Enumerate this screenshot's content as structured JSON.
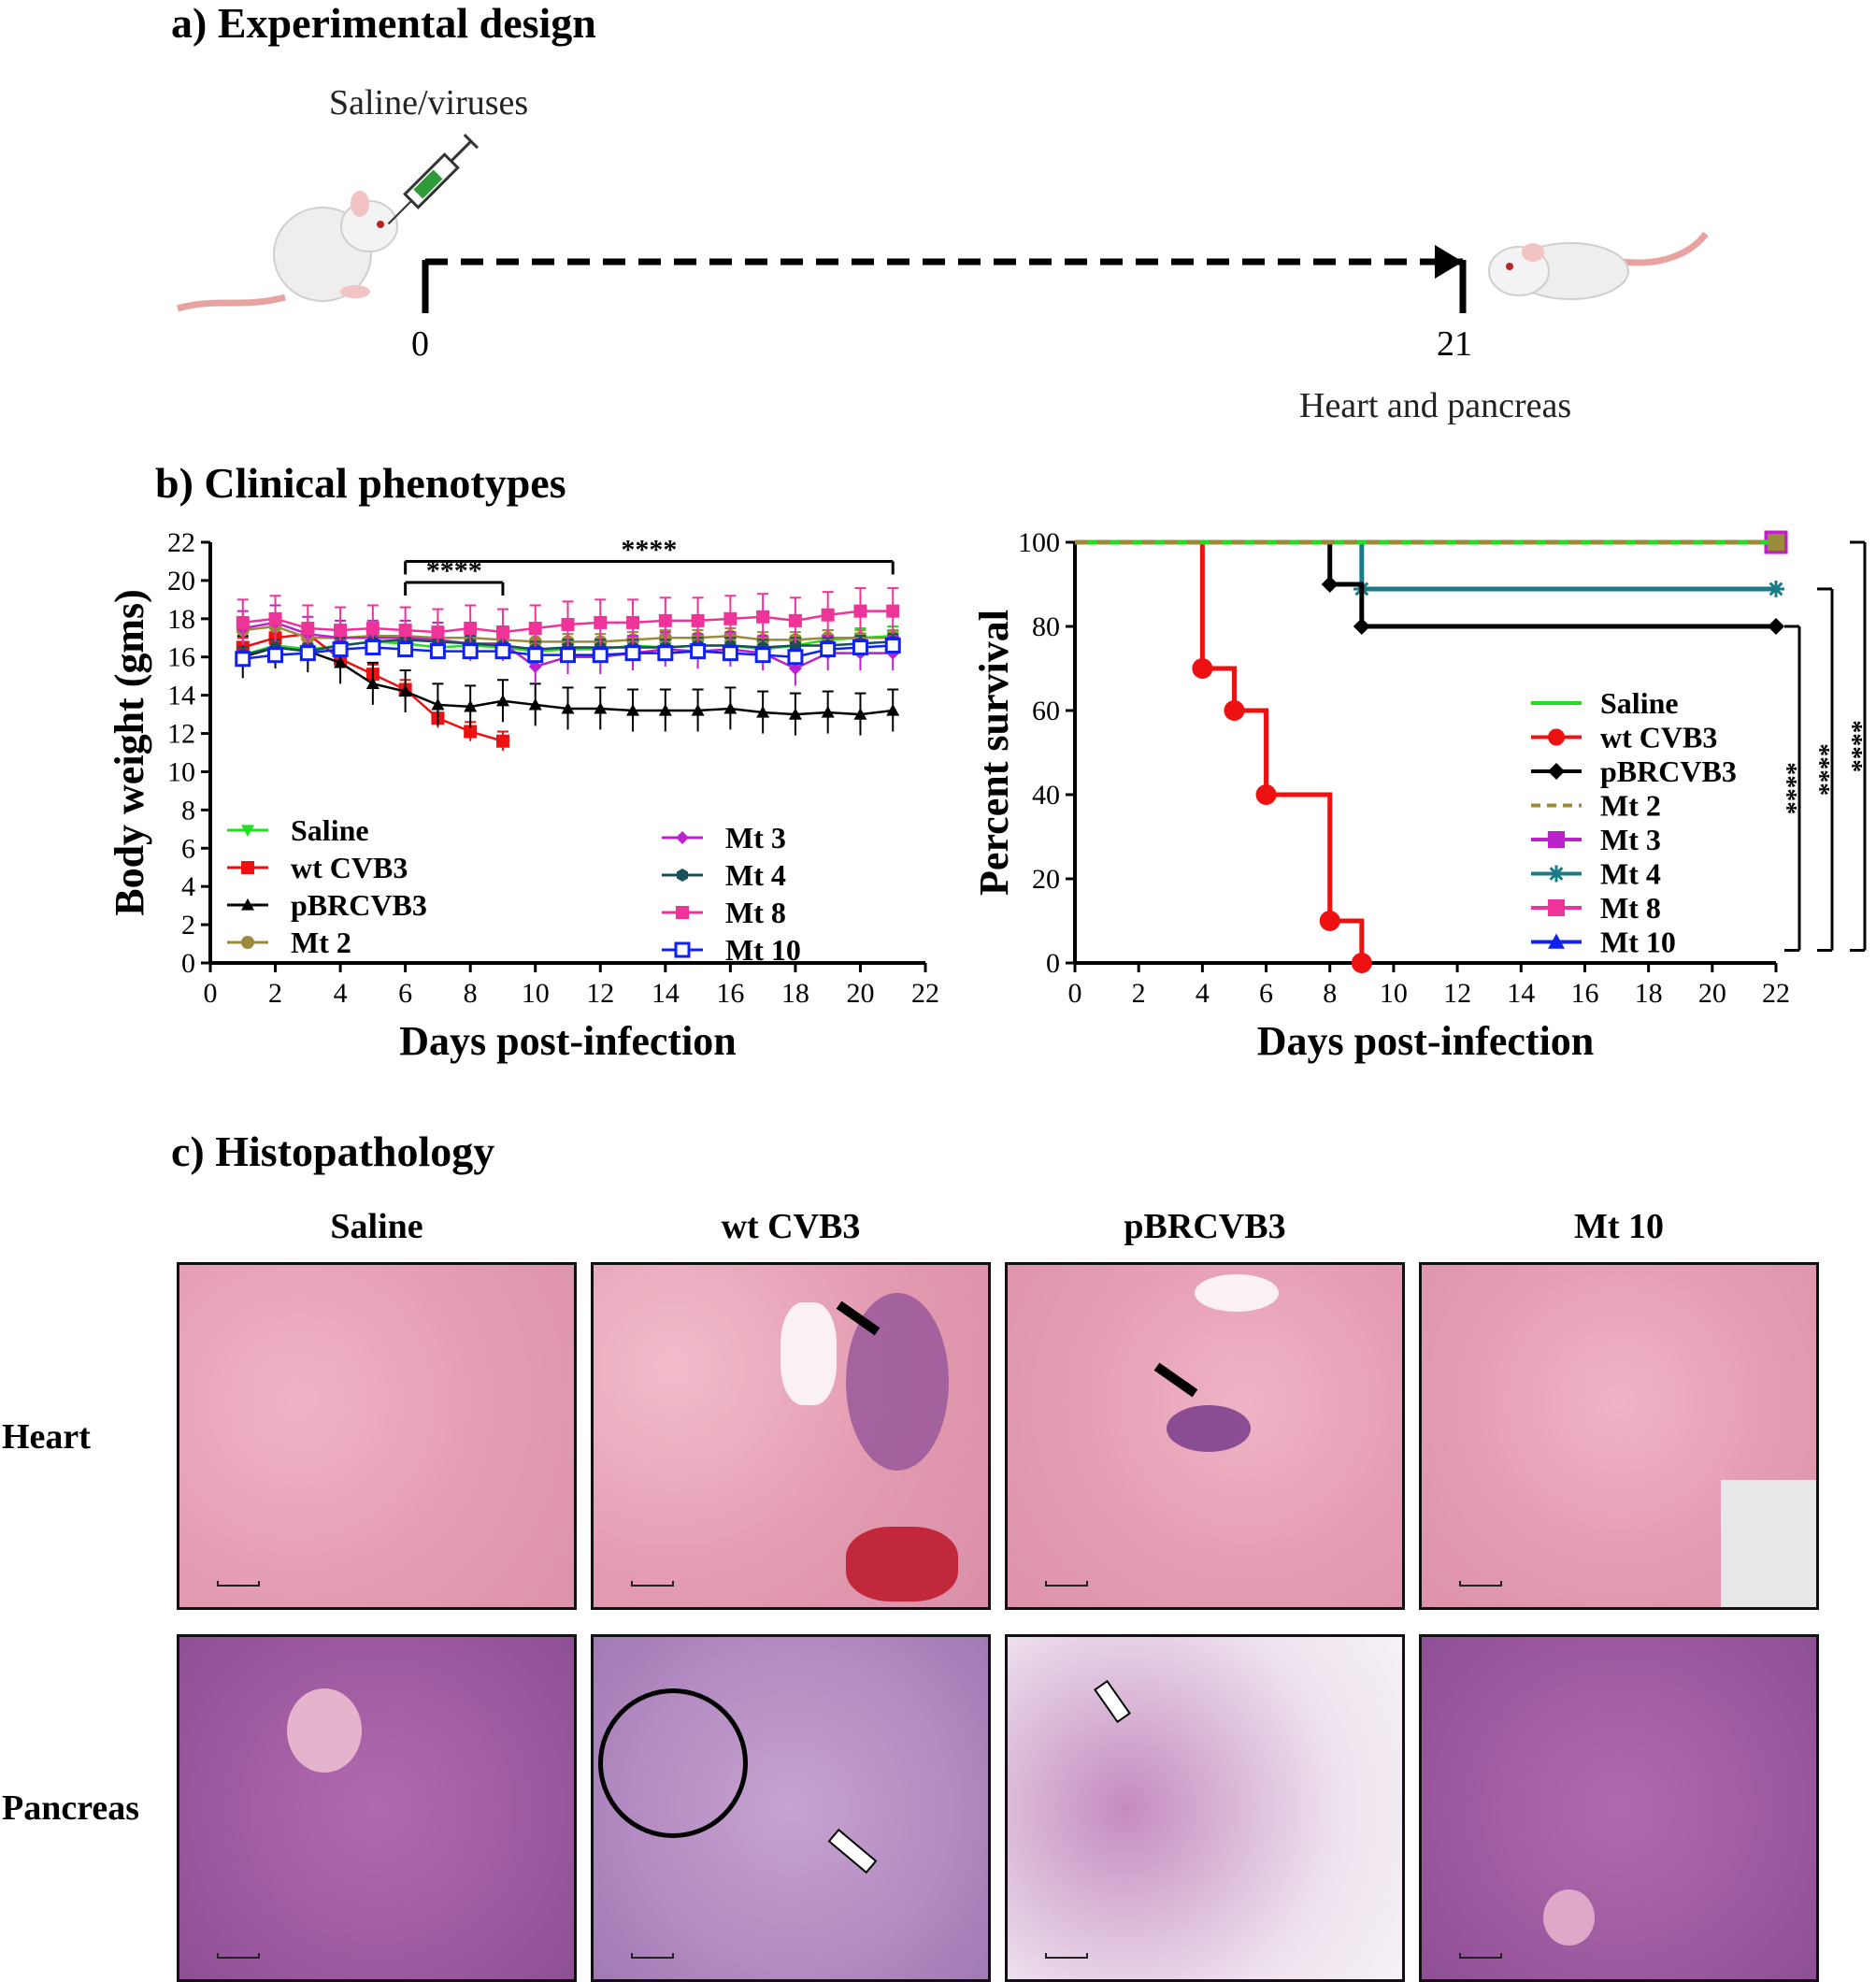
{
  "sections": {
    "a_title": "a) Experimental design",
    "b_title": "b) Clinical phenotypes",
    "c_title": "c) Histopathology"
  },
  "design": {
    "injection_label": "Saline/viruses",
    "start_day": "0",
    "end_day": "21",
    "end_label": "Heart and pancreas"
  },
  "chart_data": [
    {
      "type": "line",
      "xlabel": "Days post-infection",
      "ylabel": "Body weight (gms)",
      "xlim": [
        0,
        22
      ],
      "ylim": [
        0,
        22
      ],
      "xticks": [
        0,
        2,
        4,
        6,
        8,
        10,
        12,
        14,
        16,
        18,
        20,
        22
      ],
      "yticks": [
        0,
        2,
        4,
        6,
        8,
        10,
        12,
        14,
        16,
        18,
        20,
        22
      ],
      "significance": [
        {
          "from": 6,
          "to": 9,
          "label": "****"
        },
        {
          "from": 6,
          "to": 21,
          "label": "****"
        }
      ],
      "series": [
        {
          "name": "Saline",
          "color": "#22dd22",
          "marker": "triangle-down",
          "x": [
            1,
            2,
            3,
            4,
            5,
            6,
            7,
            8,
            9,
            10,
            11,
            12,
            13,
            14,
            15,
            16,
            17,
            18,
            19,
            20,
            21
          ],
          "y": [
            16.1,
            16.6,
            16.4,
            16.6,
            16.8,
            16.7,
            16.5,
            16.6,
            16.5,
            16.3,
            16.4,
            16.4,
            16.6,
            16.5,
            16.6,
            16.6,
            16.4,
            16.6,
            16.9,
            17.0,
            17.1
          ],
          "err": 0.5
        },
        {
          "name": "wt CVB3",
          "color": "#ee1111",
          "marker": "square",
          "x": [
            1,
            2,
            3,
            4,
            5,
            6,
            7,
            8,
            9
          ],
          "y": [
            16.5,
            17.0,
            17.2,
            15.9,
            15.1,
            14.3,
            12.8,
            12.1,
            11.6
          ],
          "err": 0.5
        },
        {
          "name": "pBRCVB3",
          "color": "#000000",
          "marker": "triangle-up",
          "x": [
            1,
            2,
            3,
            4,
            5,
            6,
            7,
            8,
            9,
            10,
            11,
            12,
            13,
            14,
            15,
            16,
            17,
            18,
            19,
            20,
            21
          ],
          "y": [
            16.0,
            16.5,
            16.3,
            15.7,
            14.6,
            14.2,
            13.5,
            13.4,
            13.7,
            13.5,
            13.3,
            13.3,
            13.2,
            13.2,
            13.2,
            13.3,
            13.1,
            13.0,
            13.1,
            13.0,
            13.2
          ],
          "err": 1.1
        },
        {
          "name": "Mt 2",
          "color": "#9a8a3a",
          "marker": "circle",
          "x": [
            1,
            2,
            3,
            4,
            5,
            6,
            7,
            8,
            9,
            10,
            11,
            12,
            13,
            14,
            15,
            16,
            17,
            18,
            19,
            20,
            21
          ],
          "y": [
            17.4,
            17.6,
            17.0,
            17.0,
            17.1,
            17.1,
            17.0,
            17.0,
            16.9,
            16.8,
            16.8,
            16.8,
            16.9,
            17.0,
            17.0,
            17.1,
            16.9,
            16.9,
            17.0,
            17.0,
            17.0
          ],
          "err": 0.4
        },
        {
          "name": "Mt 3",
          "color": "#bb22cc",
          "marker": "diamond",
          "x": [
            1,
            2,
            3,
            4,
            5,
            6,
            7,
            8,
            9,
            10,
            11,
            12,
            13,
            14,
            15,
            16,
            17,
            18,
            19,
            20,
            21
          ],
          "y": [
            17.5,
            17.8,
            17.2,
            17.0,
            17.0,
            17.0,
            16.9,
            16.7,
            16.7,
            15.5,
            16.0,
            16.0,
            16.2,
            16.4,
            16.3,
            16.4,
            16.2,
            15.4,
            16.2,
            16.2,
            16.2
          ],
          "err": 0.9
        },
        {
          "name": "Mt 4",
          "color": "#1a4f5a",
          "marker": "hexagon",
          "x": [
            1,
            2,
            3,
            4,
            5,
            6,
            7,
            8,
            9,
            10,
            11,
            12,
            13,
            14,
            15,
            16,
            17,
            18,
            19,
            20,
            21
          ],
          "y": [
            16.1,
            16.5,
            16.3,
            16.6,
            16.8,
            16.9,
            16.8,
            16.7,
            16.6,
            16.4,
            16.5,
            16.5,
            16.5,
            16.5,
            16.6,
            16.6,
            16.5,
            16.6,
            16.6,
            16.7,
            16.8
          ],
          "err": 0.4
        },
        {
          "name": "Mt 8",
          "color": "#ee3399",
          "marker": "square",
          "x": [
            1,
            2,
            3,
            4,
            5,
            6,
            7,
            8,
            9,
            10,
            11,
            12,
            13,
            14,
            15,
            16,
            17,
            18,
            19,
            20,
            21
          ],
          "y": [
            17.8,
            18.0,
            17.5,
            17.4,
            17.5,
            17.4,
            17.3,
            17.5,
            17.3,
            17.5,
            17.7,
            17.8,
            17.8,
            17.9,
            17.9,
            18.0,
            18.1,
            17.9,
            18.2,
            18.4,
            18.4
          ],
          "err": 1.2
        },
        {
          "name": "Mt 10",
          "color": "#1122ee",
          "marker": "square-open",
          "x": [
            1,
            2,
            3,
            4,
            5,
            6,
            7,
            8,
            9,
            10,
            11,
            12,
            13,
            14,
            15,
            16,
            17,
            18,
            19,
            20,
            21
          ],
          "y": [
            15.9,
            16.1,
            16.2,
            16.4,
            16.5,
            16.4,
            16.3,
            16.3,
            16.3,
            16.1,
            16.1,
            16.1,
            16.2,
            16.2,
            16.3,
            16.2,
            16.1,
            16.0,
            16.4,
            16.5,
            16.6
          ],
          "err": 0.4
        }
      ]
    },
    {
      "type": "line",
      "subtype": "survival-step",
      "xlabel": "Days post-infection",
      "ylabel": "Percent survival",
      "xlim": [
        0,
        22
      ],
      "ylim": [
        0,
        100
      ],
      "xticks": [
        0,
        2,
        4,
        6,
        8,
        10,
        12,
        14,
        16,
        18,
        20,
        22
      ],
      "yticks": [
        0,
        20,
        40,
        60,
        80,
        100
      ],
      "significance": [
        "****",
        "****",
        "****"
      ],
      "series": [
        {
          "name": "Saline",
          "color": "#22dd22",
          "style": "solid",
          "x": [
            0,
            22
          ],
          "y": [
            100,
            100
          ],
          "markers": []
        },
        {
          "name": "wt CVB3",
          "color": "#ee1111",
          "style": "solid",
          "x": [
            0,
            4,
            4,
            5,
            5,
            6,
            6,
            8,
            8,
            9,
            9
          ],
          "y": [
            100,
            100,
            70,
            70,
            60,
            60,
            40,
            40,
            10,
            10,
            0
          ],
          "markers": [
            [
              4,
              70
            ],
            [
              5,
              60
            ],
            [
              6,
              40
            ],
            [
              8,
              10
            ],
            [
              9,
              0
            ]
          ]
        },
        {
          "name": "pBRCVB3",
          "color": "#000000",
          "style": "solid",
          "x": [
            0,
            8,
            8,
            9,
            9,
            22
          ],
          "y": [
            100,
            100,
            90,
            90,
            80,
            80
          ],
          "markers": [
            [
              8,
              90
            ],
            [
              9,
              80
            ],
            [
              22,
              80
            ]
          ]
        },
        {
          "name": "Mt 2",
          "color": "#9a8a3a",
          "style": "dashed",
          "x": [
            0,
            22
          ],
          "y": [
            100,
            100
          ],
          "markers": [
            [
              22,
              100
            ]
          ]
        },
        {
          "name": "Mt 3",
          "color": "#bb22cc",
          "style": "solid",
          "x": [
            0,
            22
          ],
          "y": [
            100,
            100
          ],
          "markers": [
            [
              22,
              100
            ]
          ]
        },
        {
          "name": "Mt 4",
          "color": "#1a7a88",
          "style": "solid",
          "x": [
            0,
            9,
            9,
            22
          ],
          "y": [
            100,
            100,
            88.9,
            88.9
          ],
          "markers": [
            [
              9,
              88.9
            ],
            [
              22,
              88.9
            ]
          ]
        },
        {
          "name": "Mt 8",
          "color": "#ee3399",
          "style": "solid",
          "x": [
            0,
            22
          ],
          "y": [
            100,
            100
          ],
          "markers": []
        },
        {
          "name": "Mt 10",
          "color": "#1122ee",
          "style": "solid",
          "x": [
            0,
            22
          ],
          "y": [
            100,
            100
          ],
          "markers": []
        }
      ]
    }
  ],
  "histology": {
    "columns": [
      "Saline",
      "wt CVB3",
      "pBRCVB3",
      "Mt 10"
    ],
    "rows": [
      "Heart",
      "Pancreas"
    ],
    "colors": {
      "heart": "#e9a6bb",
      "pancreas": "#9e5aa0"
    }
  }
}
